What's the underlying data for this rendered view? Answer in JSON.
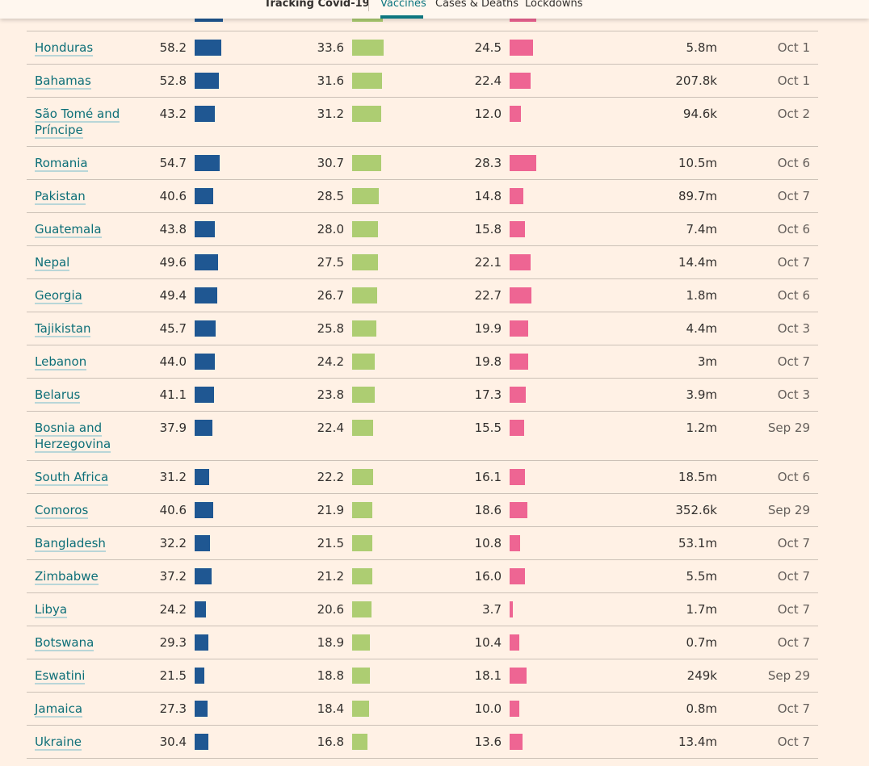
{
  "nav": {
    "title": "Tracking Covid-19",
    "tabs": [
      "Vaccines",
      "Cases & Deaths",
      "Lockdowns"
    ],
    "active_tab": "Vaccines"
  },
  "colors": {
    "accent": "#0d7680",
    "bar1": "#1f5792",
    "bar2": "#adcd72",
    "bar3": "#ee6593"
  },
  "rows": [
    {
      "country": "Honduras",
      "v1": "58.2",
      "v2": "33.6",
      "v3": "24.5",
      "pop": "5.8m",
      "date": "Oct 1"
    },
    {
      "country": "Bahamas",
      "v1": "52.8",
      "v2": "31.6",
      "v3": "22.4",
      "pop": "207.8k",
      "date": "Oct 1"
    },
    {
      "country": "São Tomé and Príncipe",
      "v1": "43.2",
      "v2": "31.2",
      "v3": "12.0",
      "pop": "94.6k",
      "date": "Oct 2"
    },
    {
      "country": "Romania",
      "v1": "54.7",
      "v2": "30.7",
      "v3": "28.3",
      "pop": "10.5m",
      "date": "Oct 6"
    },
    {
      "country": "Pakistan",
      "v1": "40.6",
      "v2": "28.5",
      "v3": "14.8",
      "pop": "89.7m",
      "date": "Oct 7"
    },
    {
      "country": "Guatemala",
      "v1": "43.8",
      "v2": "28.0",
      "v3": "15.8",
      "pop": "7.4m",
      "date": "Oct 6"
    },
    {
      "country": "Nepal",
      "v1": "49.6",
      "v2": "27.5",
      "v3": "22.1",
      "pop": "14.4m",
      "date": "Oct 7"
    },
    {
      "country": "Georgia",
      "v1": "49.4",
      "v2": "26.7",
      "v3": "22.7",
      "pop": "1.8m",
      "date": "Oct 6"
    },
    {
      "country": "Tajikistan",
      "v1": "45.7",
      "v2": "25.8",
      "v3": "19.9",
      "pop": "4.4m",
      "date": "Oct 3"
    },
    {
      "country": "Lebanon",
      "v1": "44.0",
      "v2": "24.2",
      "v3": "19.8",
      "pop": "3m",
      "date": "Oct 7"
    },
    {
      "country": "Belarus",
      "v1": "41.1",
      "v2": "23.8",
      "v3": "17.3",
      "pop": "3.9m",
      "date": "Oct 3"
    },
    {
      "country": "Bosnia and Herzegovina",
      "v1": "37.9",
      "v2": "22.4",
      "v3": "15.5",
      "pop": "1.2m",
      "date": "Sep 29"
    },
    {
      "country": "South Africa",
      "v1": "31.2",
      "v2": "22.2",
      "v3": "16.1",
      "pop": "18.5m",
      "date": "Oct 6"
    },
    {
      "country": "Comoros",
      "v1": "40.6",
      "v2": "21.9",
      "v3": "18.6",
      "pop": "352.6k",
      "date": "Sep 29"
    },
    {
      "country": "Bangladesh",
      "v1": "32.2",
      "v2": "21.5",
      "v3": "10.8",
      "pop": "53.1m",
      "date": "Oct 7"
    },
    {
      "country": "Zimbabwe",
      "v1": "37.2",
      "v2": "21.2",
      "v3": "16.0",
      "pop": "5.5m",
      "date": "Oct 7"
    },
    {
      "country": "Libya",
      "v1": "24.2",
      "v2": "20.6",
      "v3": "3.7",
      "pop": "1.7m",
      "date": "Oct 7"
    },
    {
      "country": "Botswana",
      "v1": "29.3",
      "v2": "18.9",
      "v3": "10.4",
      "pop": "0.7m",
      "date": "Oct 7"
    },
    {
      "country": "Eswatini",
      "v1": "21.5",
      "v2": "18.8",
      "v3": "18.1",
      "pop": "249k",
      "date": "Sep 29"
    },
    {
      "country": "Jamaica",
      "v1": "27.3",
      "v2": "18.4",
      "v3": "10.0",
      "pop": "0.8m",
      "date": "Oct 7"
    },
    {
      "country": "Ukraine",
      "v1": "30.4",
      "v2": "16.8",
      "v3": "13.6",
      "pop": "13.4m",
      "date": "Oct 7"
    }
  ]
}
